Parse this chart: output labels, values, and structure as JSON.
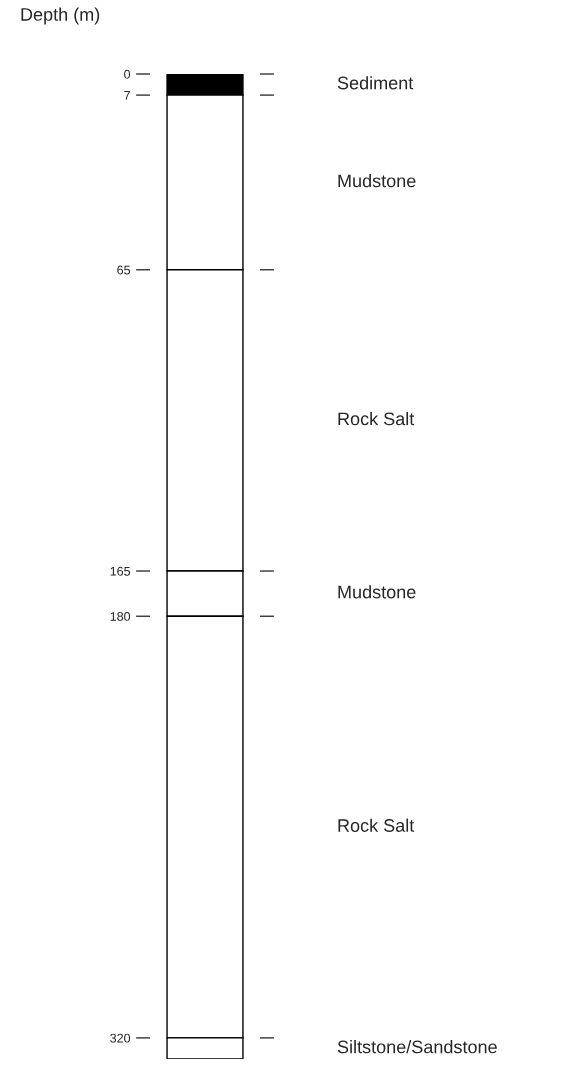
{
  "chart_data": {
    "type": "bar",
    "stacked": true,
    "ylabel": "Depth (m)",
    "categories": [
      null
    ],
    "series": [
      {
        "name": "Sediment",
        "color": "#000000",
        "values": [
          7
        ]
      },
      {
        "name": "Mudstone",
        "color": "#ffffff",
        "values": [
          58
        ]
      },
      {
        "name": "Rock Salt",
        "color": "#ffffff",
        "values": [
          100
        ]
      },
      {
        "name": "Mudstone",
        "color": "#ffffff",
        "values": [
          15
        ]
      },
      {
        "name": "Rock Salt",
        "color": "#ffffff",
        "values": [
          140
        ]
      },
      {
        "name": "Siltstone/Sandstone",
        "color": "#ffffff",
        "values": [
          7
        ]
      }
    ],
    "ylim": [
      327,
      0
    ],
    "yticks": [
      0,
      7,
      65,
      165,
      180,
      320
    ],
    "grid": false,
    "legend": false
  }
}
